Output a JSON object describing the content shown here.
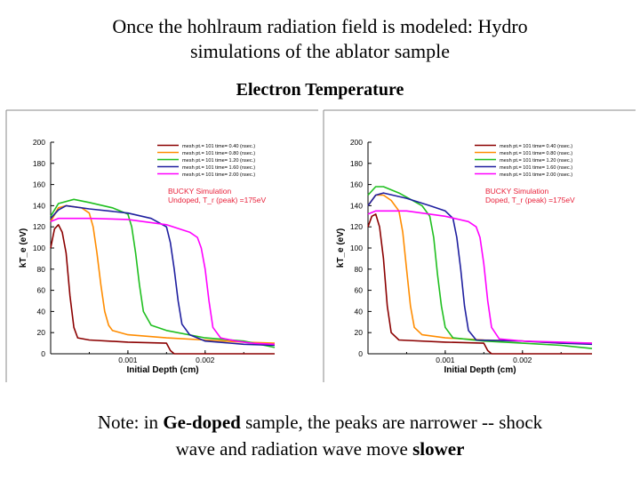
{
  "slide": {
    "title_line1": "Once the hohlraum radiation field is modeled: Hydro",
    "title_line2": "simulations of the ablator sample",
    "subtitle": "Electron Temperature",
    "note": {
      "part1": "Note: in ",
      "bold1": "Ge-doped",
      "part2": " sample, the peaks are narrower -- shock",
      "part3": "wave and radiation wave move ",
      "bold2": "slower"
    }
  },
  "chart_data": [
    {
      "type": "line",
      "title": "",
      "xlabel": "Initial Depth (cm)",
      "ylabel": "kT_e (eV)",
      "xlim": [
        0,
        0.0029
      ],
      "ylim": [
        0,
        200
      ],
      "xticks": [
        "0.001",
        "0.002"
      ],
      "yticks": [
        0,
        20,
        40,
        60,
        80,
        100,
        120,
        140,
        160,
        180,
        200
      ],
      "annotation": [
        "BUCKY Simulation",
        "Undoped, T_r (peak) =175eV"
      ],
      "legend_position": "top-right",
      "series": [
        {
          "name": "mesh pt.= 101  time=  0.40 (nsec.)",
          "color": "#8b0000",
          "x": [
            0,
            5e-05,
            0.0001,
            0.00015,
            0.0002,
            0.00025,
            0.0003,
            0.00035,
            0.0005,
            0.001,
            0.0015,
            0.00155,
            0.0016,
            0.0029
          ],
          "y": [
            100,
            118,
            122,
            115,
            95,
            55,
            25,
            15,
            13,
            11,
            10,
            3,
            0,
            0
          ]
        },
        {
          "name": "mesh pt.= 101  time=  0.80 (nsec.)",
          "color": "#ff8c00",
          "x": [
            0,
            0.0001,
            0.0002,
            0.0004,
            0.0005,
            0.00055,
            0.0006,
            0.00065,
            0.0007,
            0.00075,
            0.0008,
            0.001,
            0.0015,
            0.002,
            0.0025,
            0.0029
          ],
          "y": [
            125,
            138,
            140,
            138,
            133,
            120,
            95,
            65,
            40,
            27,
            22,
            18,
            15,
            13,
            11,
            10
          ]
        },
        {
          "name": "mesh pt.= 101  time=  1.20 (nsec.)",
          "color": "#1fbf1f",
          "x": [
            0,
            0.0001,
            0.0003,
            0.0005,
            0.0008,
            0.001,
            0.00105,
            0.0011,
            0.00115,
            0.0012,
            0.0013,
            0.0015,
            0.002,
            0.0025,
            0.0029
          ],
          "y": [
            130,
            142,
            146,
            143,
            138,
            132,
            120,
            95,
            65,
            40,
            27,
            22,
            15,
            12,
            6
          ]
        },
        {
          "name": "mesh pt.= 101  time=  1.60 (nsec.)",
          "color": "#1f1f9f",
          "x": [
            0,
            0.0001,
            0.0002,
            0.0005,
            0.001,
            0.0013,
            0.0015,
            0.00155,
            0.0016,
            0.00165,
            0.0017,
            0.0018,
            0.0019,
            0.002,
            0.0025,
            0.0029
          ],
          "y": [
            128,
            136,
            140,
            137,
            133,
            128,
            120,
            105,
            80,
            50,
            28,
            18,
            15,
            12,
            9,
            8
          ]
        },
        {
          "name": "mesh pt.= 101  time=  2.00 (nsec.)",
          "color": "#ff00ff",
          "x": [
            0,
            0.0001,
            0.0005,
            0.001,
            0.0015,
            0.0018,
            0.0019,
            0.00195,
            0.002,
            0.00205,
            0.0021,
            0.0022,
            0.0024,
            0.0026,
            0.0029
          ],
          "y": [
            125,
            128,
            128,
            127,
            122,
            115,
            110,
            100,
            80,
            50,
            25,
            15,
            12,
            10,
            9
          ]
        }
      ]
    },
    {
      "type": "line",
      "title": "",
      "xlabel": "Initial Depth (cm)",
      "ylabel": "kT_e (eV)",
      "xlim": [
        0,
        0.0029
      ],
      "ylim": [
        0,
        200
      ],
      "xticks": [
        "0.001",
        "0.002"
      ],
      "yticks": [
        0,
        20,
        40,
        60,
        80,
        100,
        120,
        140,
        160,
        180,
        200
      ],
      "annotation": [
        "BUCKY Simulation",
        "Doped, T_r (peak) =175eV"
      ],
      "legend_position": "top-right",
      "series": [
        {
          "name": "mesh pt.= 101  time=  0.40 (nsec.)",
          "color": "#8b0000",
          "x": [
            0,
            5e-05,
            0.0001,
            0.00015,
            0.0002,
            0.00025,
            0.0003,
            0.0004,
            0.001,
            0.0015,
            0.00155,
            0.0016,
            0.0029
          ],
          "y": [
            120,
            130,
            132,
            120,
            90,
            45,
            20,
            13,
            11,
            10,
            3,
            0,
            0
          ]
        },
        {
          "name": "mesh pt.= 101  time=  0.80 (nsec.)",
          "color": "#ff8c00",
          "x": [
            0,
            0.0001,
            0.0002,
            0.0003,
            0.0004,
            0.00045,
            0.0005,
            0.00055,
            0.0006,
            0.0007,
            0.001,
            0.0015,
            0.002,
            0.0025,
            0.0029
          ],
          "y": [
            140,
            150,
            150,
            145,
            135,
            115,
            80,
            45,
            25,
            18,
            15,
            13,
            12,
            10,
            10
          ]
        },
        {
          "name": "mesh pt.= 101  time=  1.20 (nsec.)",
          "color": "#1fbf1f",
          "x": [
            0,
            0.0001,
            0.0002,
            0.0004,
            0.0007,
            0.0008,
            0.00085,
            0.0009,
            0.00095,
            0.001,
            0.0011,
            0.0015,
            0.002,
            0.0025,
            0.0029
          ],
          "y": [
            150,
            158,
            158,
            152,
            140,
            130,
            110,
            75,
            45,
            25,
            15,
            12,
            10,
            8,
            5
          ]
        },
        {
          "name": "mesh pt.= 101  time=  1.60 (nsec.)",
          "color": "#1f1f9f",
          "x": [
            0,
            0.0001,
            0.0002,
            0.0005,
            0.0008,
            0.001,
            0.0011,
            0.00115,
            0.0012,
            0.00125,
            0.0013,
            0.0014,
            0.002,
            0.0025,
            0.0029
          ],
          "y": [
            140,
            150,
            152,
            147,
            140,
            135,
            128,
            110,
            80,
            45,
            22,
            13,
            12,
            10,
            9
          ]
        },
        {
          "name": "mesh pt.= 101  time=  2.00 (nsec.)",
          "color": "#ff00ff",
          "x": [
            0,
            0.0001,
            0.0005,
            0.001,
            0.0013,
            0.0014,
            0.00145,
            0.0015,
            0.00155,
            0.0016,
            0.0017,
            0.002,
            0.0025,
            0.0029
          ],
          "y": [
            132,
            135,
            135,
            130,
            125,
            120,
            110,
            85,
            50,
            25,
            14,
            12,
            11,
            10
          ]
        }
      ]
    }
  ]
}
